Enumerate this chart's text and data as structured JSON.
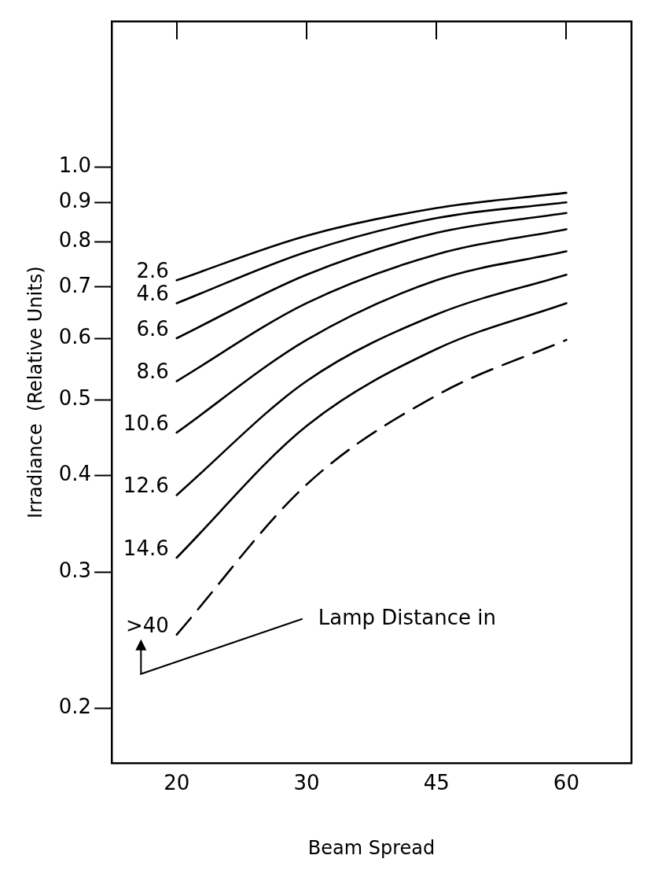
{
  "chart_data": {
    "type": "line",
    "xlabel": "Beam Spread",
    "ylabel": "Irradiance  (Relative Units)",
    "categories": [
      "20",
      "30",
      "45",
      "60"
    ],
    "log": "y",
    "ylim": [
      0.17,
      1.54
    ],
    "yticks": [
      0.2,
      0.3,
      0.4,
      0.5,
      0.6,
      0.7,
      0.8,
      0.9,
      {
        "value": 1,
        "label": "1.0"
      }
    ],
    "grid": false,
    "legend": "left",
    "marker": "none",
    "series": [
      {
        "name": "2.6",
        "color": "#000000",
        "values": [
          0.714,
          0.815,
          0.885,
          0.926
        ]
      },
      {
        "name": "4.6",
        "color": "#000000",
        "values": [
          0.667,
          0.777,
          0.859,
          0.9
        ]
      },
      {
        "name": "6.6",
        "color": "#000000",
        "values": [
          0.601,
          0.726,
          0.822,
          0.872
        ]
      },
      {
        "name": "8.6",
        "color": "#000000",
        "values": [
          0.529,
          0.667,
          0.771,
          0.831
        ]
      },
      {
        "name": "10.6",
        "color": "#000000",
        "values": [
          0.454,
          0.598,
          0.714,
          0.778
        ]
      },
      {
        "name": "12.6",
        "color": "#000000",
        "values": [
          0.377,
          0.529,
          0.645,
          0.726
        ]
      },
      {
        "name": "14.6",
        "color": "#000000",
        "values": [
          0.313,
          0.463,
          0.582,
          0.667
        ]
      },
      {
        "name": ">40",
        "color": "#000000",
        "values": [
          0.249,
          0.389,
          0.507,
          0.598
        ],
        "line_style": "dashed"
      }
    ],
    "annotations": [
      "Lamp Distance in"
    ]
  }
}
